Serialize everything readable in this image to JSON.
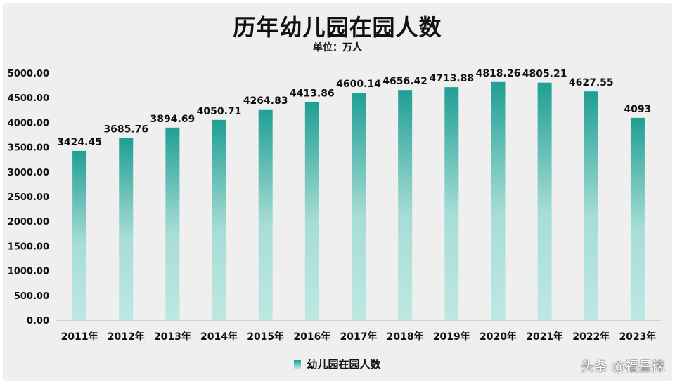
{
  "chart_data": {
    "type": "bar",
    "title": "历年幼儿园在园人数",
    "subtitle": "单位：万人",
    "categories": [
      "2011年",
      "2012年",
      "2013年",
      "2014年",
      "2015年",
      "2016年",
      "2017年",
      "2018年",
      "2019年",
      "2020年",
      "2021年",
      "2022年",
      "2023年"
    ],
    "series": [
      {
        "name": "幼儿园在园人数",
        "values": [
          3424.45,
          3685.76,
          3894.69,
          4050.71,
          4264.83,
          4413.86,
          4600.14,
          4656.42,
          4713.88,
          4818.26,
          4805.21,
          4627.55,
          4093
        ],
        "labels": [
          "3424.45",
          "3685.76",
          "3894.69",
          "4050.71",
          "4264.83",
          "4413.86",
          "4600.14",
          "4656.42",
          "4713.88",
          "4818.26",
          "4805.21",
          "4627.55",
          "4093"
        ]
      }
    ],
    "yticks": [
      "0.00",
      "500.00",
      "1000.00",
      "1500.00",
      "2000.00",
      "2500.00",
      "3000.00",
      "3500.00",
      "4000.00",
      "4500.00",
      "5000.00"
    ],
    "ylim": [
      0,
      5000
    ],
    "grid": false,
    "legend_position": "bottom",
    "colors": {
      "bar_top": "#1f9f93",
      "bar_bottom": "#bde8e2"
    }
  },
  "watermark": "头条 @福星徕"
}
